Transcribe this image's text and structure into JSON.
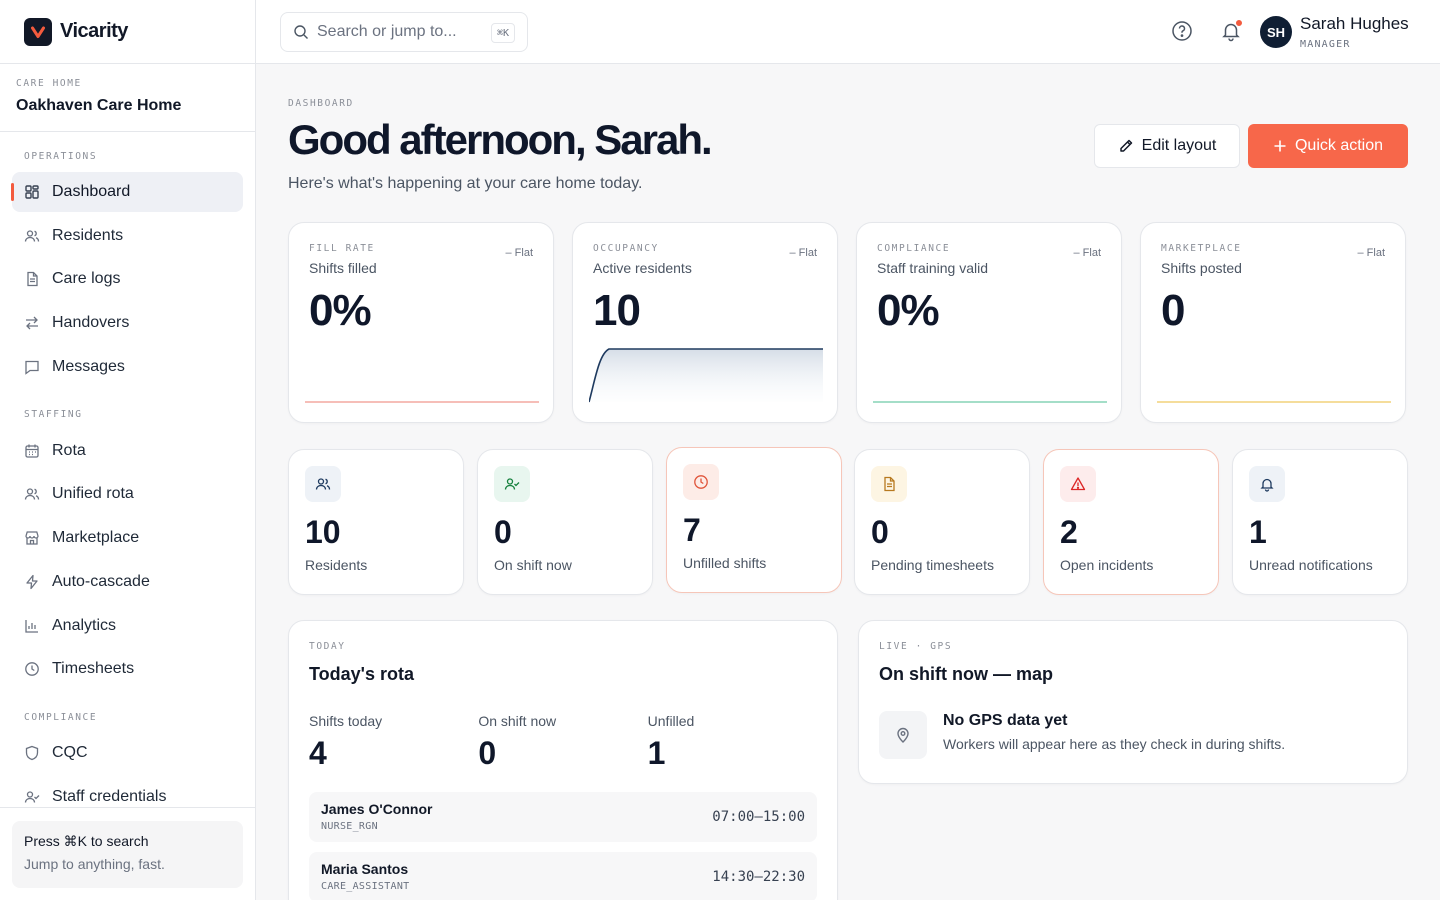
{
  "brand": {
    "name": "Vicarity"
  },
  "care_home": {
    "label": "CARE HOME",
    "name": "Oakhaven Care Home"
  },
  "nav": {
    "operations": {
      "title": "OPERATIONS",
      "items": [
        {
          "label": "Dashboard",
          "icon": "grid-icon"
        },
        {
          "label": "Residents",
          "icon": "users-icon"
        },
        {
          "label": "Care logs",
          "icon": "document-icon"
        },
        {
          "label": "Handovers",
          "icon": "swap-icon"
        },
        {
          "label": "Messages",
          "icon": "message-icon"
        }
      ]
    },
    "staffing": {
      "title": "STAFFING",
      "items": [
        {
          "label": "Rota",
          "icon": "calendar-icon"
        },
        {
          "label": "Unified rota",
          "icon": "users-icon"
        },
        {
          "label": "Marketplace",
          "icon": "store-icon"
        },
        {
          "label": "Auto-cascade",
          "icon": "lightning-icon"
        },
        {
          "label": "Analytics",
          "icon": "bar-chart-icon"
        },
        {
          "label": "Timesheets",
          "icon": "clock-icon"
        }
      ]
    },
    "compliance": {
      "title": "COMPLIANCE",
      "items": [
        {
          "label": "CQC",
          "icon": "shield-icon"
        },
        {
          "label": "Staff credentials",
          "icon": "user-check-icon"
        }
      ]
    }
  },
  "sidebar_footer": {
    "title": "Press ⌘K to search",
    "subtitle": "Jump to anything, fast."
  },
  "topbar": {
    "search_placeholder": "Search or jump to...",
    "search_shortcut": "⌘K",
    "user": {
      "initials": "SH",
      "name": "Sarah Hughes",
      "role": "MANAGER"
    }
  },
  "page": {
    "eyebrow": "DASHBOARD",
    "greeting": "Good afternoon, Sarah.",
    "subtitle": "Here's what's happening at your care home today.",
    "edit_layout": "Edit layout",
    "quick_action": "Quick action"
  },
  "kpis": [
    {
      "eyebrow": "FILL RATE",
      "label": "Shifts filled",
      "value": "0%",
      "trend": "– Flat",
      "spark_color": "#f4a9a0",
      "spark_shape": "flat"
    },
    {
      "eyebrow": "OCCUPANCY",
      "label": "Active residents",
      "value": "10",
      "trend": "– Flat",
      "spark_color": "#1e3a5f",
      "spark_shape": "rise"
    },
    {
      "eyebrow": "COMPLIANCE",
      "label": "Staff training valid",
      "value": "0%",
      "trend": "– Flat",
      "spark_color": "#86d3b6",
      "spark_shape": "flat"
    },
    {
      "eyebrow": "MARKETPLACE",
      "label": "Shifts posted",
      "value": "0",
      "trend": "– Flat",
      "spark_color": "#f2d27a",
      "spark_shape": "flat"
    }
  ],
  "stats": [
    {
      "value": "10",
      "label": "Residents",
      "icon": "users-icon",
      "icon_bg": "#eef2f7",
      "icon_color": "#1e3a5f",
      "alert": false
    },
    {
      "value": "0",
      "label": "On shift now",
      "icon": "user-check-icon",
      "icon_bg": "#e8f6ef",
      "icon_color": "#15803d",
      "alert": false
    },
    {
      "value": "7",
      "label": "Unfilled shifts",
      "icon": "clock-icon",
      "icon_bg": "#fdece7",
      "icon_color": "#e0543a",
      "alert": true
    },
    {
      "value": "0",
      "label": "Pending timesheets",
      "icon": "document-icon",
      "icon_bg": "#fdf5e3",
      "icon_color": "#b7791f",
      "alert": false
    },
    {
      "value": "2",
      "label": "Open incidents",
      "icon": "warning-icon",
      "icon_bg": "#fdecec",
      "icon_color": "#dc2626",
      "alert": true
    },
    {
      "value": "1",
      "label": "Unread notifications",
      "icon": "bell-icon",
      "icon_bg": "#eef2f7",
      "icon_color": "#1e3a5f",
      "alert": false
    }
  ],
  "rota": {
    "eyebrow": "TODAY",
    "title": "Today's rota",
    "stats": [
      {
        "label": "Shifts today",
        "value": "4"
      },
      {
        "label": "On shift now",
        "value": "0"
      },
      {
        "label": "Unfilled",
        "value": "1"
      }
    ],
    "shifts": [
      {
        "name": "James O'Connor",
        "role": "NURSE_RGN",
        "time": "07:00–15:00"
      },
      {
        "name": "Maria Santos",
        "role": "CARE_ASSISTANT",
        "time": "14:30–22:30"
      }
    ]
  },
  "map": {
    "eyebrow": "LIVE · GPS",
    "title": "On shift now — map",
    "empty_title": "No GPS data yet",
    "empty_desc": "Workers will appear here as they check in during shifts."
  }
}
